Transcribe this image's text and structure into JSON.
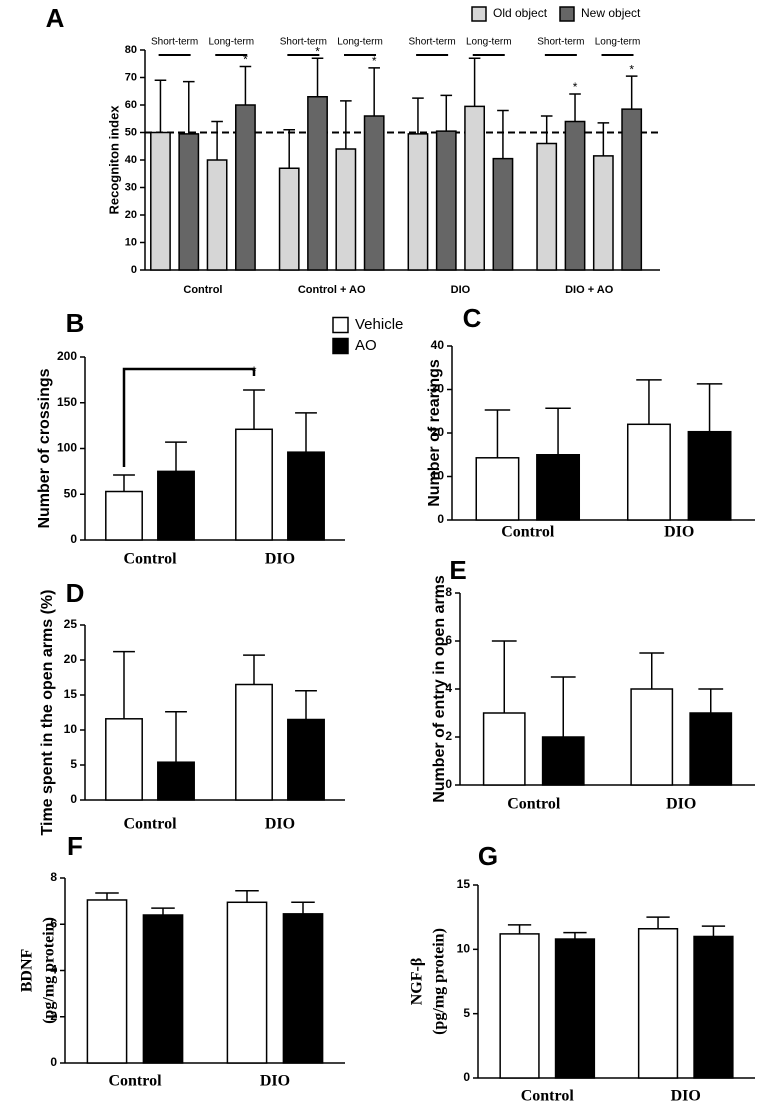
{
  "chart_data": [
    {
      "type": "bar",
      "title": "A",
      "y_label": "Recogniton index",
      "categories": [
        "Short-term",
        "Long-term",
        "Short-term",
        "Long-term",
        "Short-term",
        "Long-term",
        "Short-term",
        "Long-term"
      ],
      "groups": [
        "Control",
        "Control + AO",
        "DIO",
        "DIO + AO"
      ],
      "series": [
        {
          "name": "Old object",
          "color": "#d6d6d6",
          "values": [
            50,
            40,
            37,
            44,
            49.5,
            59.5,
            46,
            41.5
          ],
          "errors": [
            19,
            14,
            14,
            17.5,
            13,
            17.5,
            10,
            12
          ]
        },
        {
          "name": "New object",
          "color": "#666666",
          "values": [
            49.5,
            60,
            63,
            56,
            50.5,
            40.5,
            54,
            58.5
          ],
          "errors": [
            19,
            14,
            14,
            17.5,
            13,
            17.5,
            10,
            12
          ],
          "significance": [
            null,
            "*",
            "*",
            "*",
            null,
            null,
            "*",
            "*"
          ]
        }
      ],
      "reference_line": 50,
      "ylim": [
        0,
        80
      ],
      "yticks": [
        0,
        10,
        20,
        30,
        40,
        50,
        60,
        70,
        80
      ],
      "legend": "top-right"
    },
    {
      "type": "bar",
      "title": "B",
      "y_label": "Number of crossings",
      "categories": [
        "Control",
        "DIO"
      ],
      "series": [
        {
          "name": "Vehicle",
          "color": "#ffffff",
          "values": [
            53,
            121
          ],
          "errors": [
            18,
            43
          ]
        },
        {
          "name": "AO",
          "color": "#000000",
          "values": [
            75,
            96
          ],
          "errors": [
            32,
            43
          ]
        }
      ],
      "bracket": "*",
      "ylim": [
        0,
        200
      ],
      "yticks": [
        0,
        50,
        100,
        150,
        200
      ],
      "legend": "top-right"
    },
    {
      "type": "bar",
      "title": "C",
      "y_label": "Number of rearings",
      "categories": [
        "Control",
        "DIO"
      ],
      "series": [
        {
          "color": "#ffffff",
          "values": [
            14.3,
            22
          ],
          "errors": [
            11,
            10.2
          ]
        },
        {
          "color": "#000000",
          "values": [
            15,
            20.3
          ],
          "errors": [
            10.7,
            11
          ]
        }
      ],
      "ylim": [
        0,
        40
      ],
      "yticks": [
        0,
        10,
        20,
        30,
        40
      ]
    },
    {
      "type": "bar",
      "title": "D",
      "y_label": "Time spent in the open arms (%)",
      "categories": [
        "Control",
        "DIO"
      ],
      "series": [
        {
          "color": "#ffffff",
          "values": [
            11.6,
            16.5
          ],
          "errors": [
            9.6,
            4.2
          ]
        },
        {
          "color": "#000000",
          "values": [
            5.4,
            11.5
          ],
          "errors": [
            7.2,
            4.1
          ]
        }
      ],
      "ylim": [
        0,
        25
      ],
      "yticks": [
        0,
        5,
        10,
        15,
        20,
        25
      ]
    },
    {
      "type": "bar",
      "title": "E",
      "y_label": "Number of entry in open arms",
      "categories": [
        "Control",
        "DIO"
      ],
      "series": [
        {
          "color": "#ffffff",
          "values": [
            3,
            4
          ],
          "errors": [
            3,
            1.5
          ]
        },
        {
          "color": "#000000",
          "values": [
            2,
            3
          ],
          "errors": [
            2.5,
            1
          ]
        }
      ],
      "ylim": [
        0,
        8
      ],
      "yticks": [
        0,
        2,
        4,
        6,
        8
      ]
    },
    {
      "type": "bar",
      "title": "F",
      "y_label": [
        "BDNF",
        "(pg/mg protein)"
      ],
      "categories": [
        "Control",
        "DIO"
      ],
      "series": [
        {
          "color": "#ffffff",
          "values": [
            7.05,
            6.95
          ],
          "errors": [
            0.3,
            0.5
          ]
        },
        {
          "color": "#000000",
          "values": [
            6.4,
            6.45
          ],
          "errors": [
            0.3,
            0.5
          ]
        }
      ],
      "ylim": [
        0,
        8
      ],
      "yticks": [
        0,
        2,
        4,
        6,
        8
      ]
    },
    {
      "type": "bar",
      "title": "G",
      "y_label": [
        "NGF-β",
        "(pg/mg protein)"
      ],
      "categories": [
        "Control",
        "DIO"
      ],
      "series": [
        {
          "color": "#ffffff",
          "values": [
            11.2,
            11.6
          ],
          "errors": [
            0.7,
            0.9
          ]
        },
        {
          "color": "#000000",
          "values": [
            10.8,
            11
          ],
          "errors": [
            0.5,
            0.8
          ]
        }
      ],
      "ylim": [
        0,
        15
      ],
      "yticks": [
        0,
        5,
        10,
        15
      ]
    }
  ]
}
